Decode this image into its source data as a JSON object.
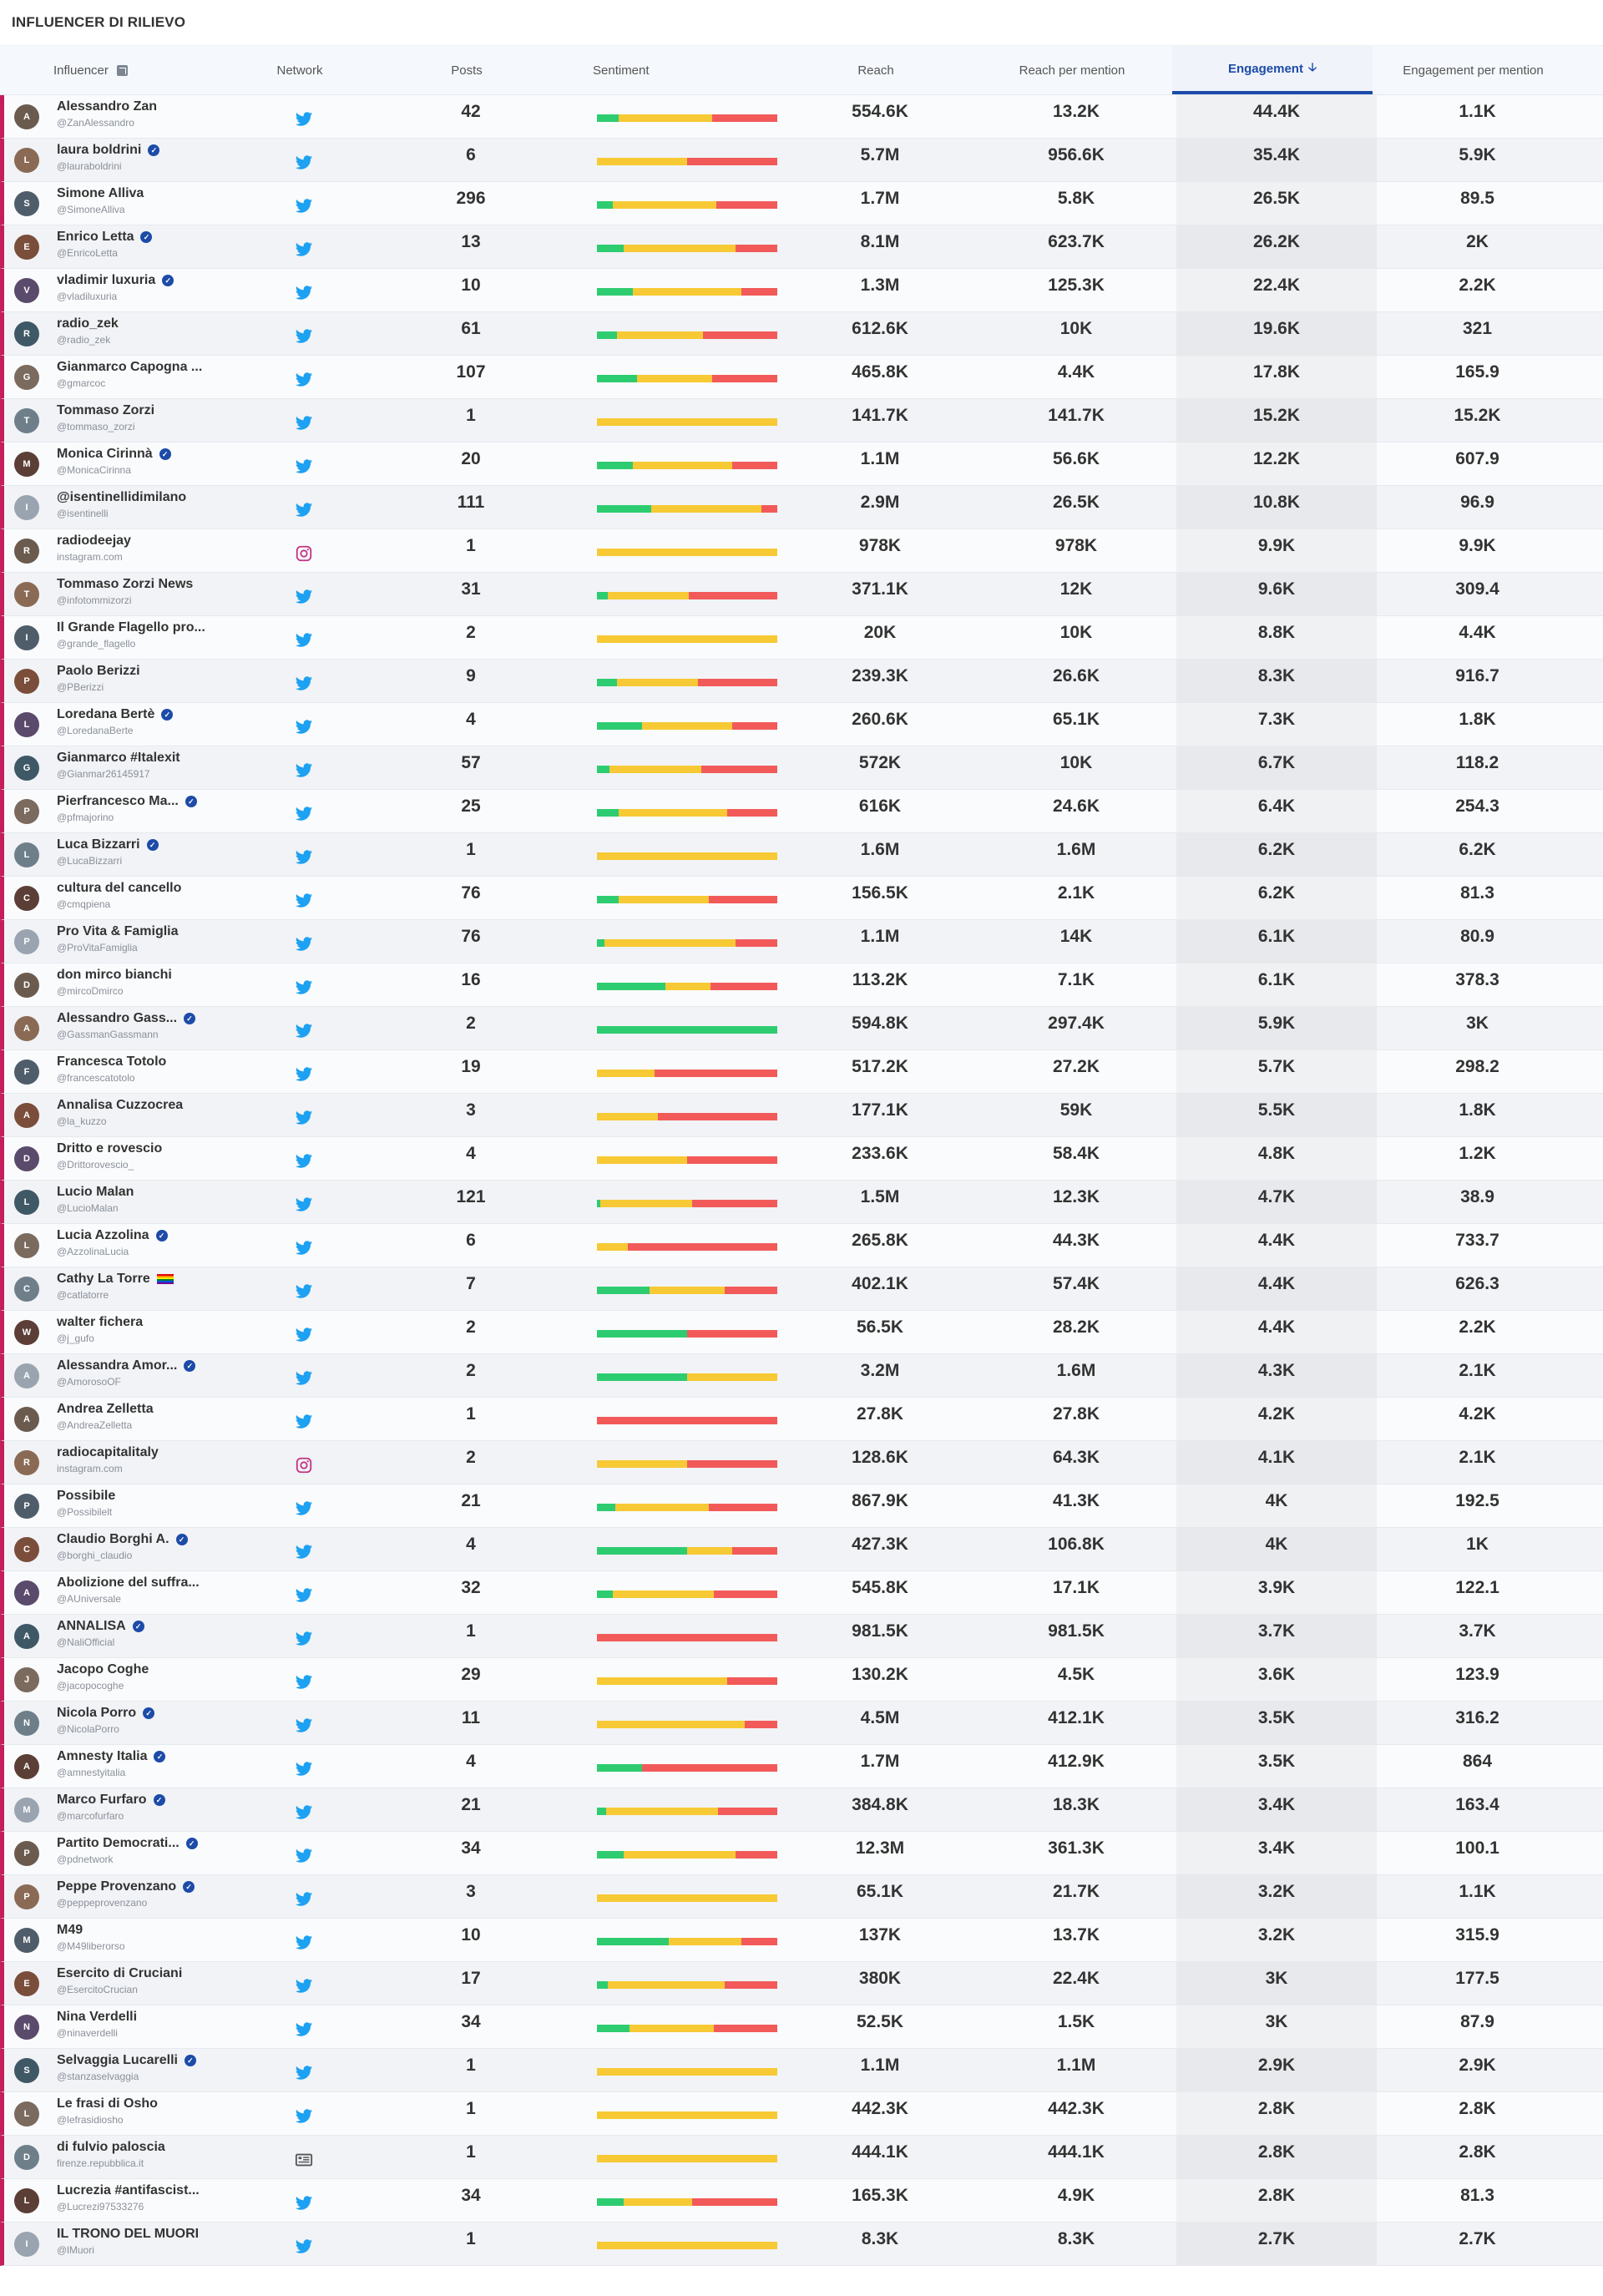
{
  "page": {
    "title": "INFLUENCER DI RILIEVO"
  },
  "columns": {
    "influencer": "Influencer",
    "network": "Network",
    "posts": "Posts",
    "sentiment": "Sentiment",
    "reach": "Reach",
    "reach_per_mention": "Reach per mention",
    "engagement": "Engagement",
    "engagement_per_mention": "Engagement per mention"
  },
  "sorted_column": "engagement",
  "colors": {
    "accent": "#1d4ba8",
    "positive": "#2ecc71",
    "neutral": "#f7c934",
    "negative": "#f25a5a",
    "row_marker": "#c41e5c",
    "twitter": "#1da1f2",
    "instagram": "#c13584"
  },
  "rows": [
    {
      "name": "Alessandro Zan",
      "handle": "@ZanAlessandro",
      "verified": false,
      "network": "twitter",
      "posts": "42",
      "sentiment": [
        12,
        52,
        36
      ],
      "reach": "554.6K",
      "rpm": "13.2K",
      "engagement": "44.4K",
      "epm": "1.1K"
    },
    {
      "name": "laura boldrini",
      "handle": "@lauraboldrini",
      "verified": true,
      "network": "twitter",
      "posts": "6",
      "sentiment": [
        0,
        50,
        50
      ],
      "reach": "5.7M",
      "rpm": "956.6K",
      "engagement": "35.4K",
      "epm": "5.9K"
    },
    {
      "name": "Simone Alliva",
      "handle": "@SimoneAlliva",
      "verified": false,
      "network": "twitter",
      "posts": "296",
      "sentiment": [
        9,
        57,
        34
      ],
      "reach": "1.7M",
      "rpm": "5.8K",
      "engagement": "26.5K",
      "epm": "89.5"
    },
    {
      "name": "Enrico Letta",
      "handle": "@EnricoLetta",
      "verified": true,
      "network": "twitter",
      "posts": "13",
      "sentiment": [
        15,
        62,
        23
      ],
      "reach": "8.1M",
      "rpm": "623.7K",
      "engagement": "26.2K",
      "epm": "2K"
    },
    {
      "name": "vladimir luxuria",
      "handle": "@vladiluxuria",
      "verified": true,
      "network": "twitter",
      "posts": "10",
      "sentiment": [
        20,
        60,
        20
      ],
      "reach": "1.3M",
      "rpm": "125.3K",
      "engagement": "22.4K",
      "epm": "2.2K"
    },
    {
      "name": "radio_zek",
      "handle": "@radio_zek",
      "verified": false,
      "network": "twitter",
      "posts": "61",
      "sentiment": [
        11,
        48,
        41
      ],
      "reach": "612.6K",
      "rpm": "10K",
      "engagement": "19.6K",
      "epm": "321"
    },
    {
      "name": "Gianmarco Capogna ...",
      "handle": "@gmarcoc",
      "verified": false,
      "network": "twitter",
      "posts": "107",
      "sentiment": [
        22,
        42,
        36
      ],
      "reach": "465.8K",
      "rpm": "4.4K",
      "engagement": "17.8K",
      "epm": "165.9"
    },
    {
      "name": "Tommaso Zorzi",
      "handle": "@tommaso_zorzi",
      "verified": false,
      "network": "twitter",
      "posts": "1",
      "sentiment": [
        0,
        100,
        0
      ],
      "reach": "141.7K",
      "rpm": "141.7K",
      "engagement": "15.2K",
      "epm": "15.2K"
    },
    {
      "name": "Monica Cirinnà",
      "handle": "@MonicaCirinna",
      "verified": true,
      "network": "twitter",
      "posts": "20",
      "sentiment": [
        20,
        55,
        25
      ],
      "reach": "1.1M",
      "rpm": "56.6K",
      "engagement": "12.2K",
      "epm": "607.9"
    },
    {
      "name": "@isentinellidimilano",
      "handle": "@isentinelli",
      "verified": false,
      "network": "twitter",
      "posts": "111",
      "sentiment": [
        30,
        61,
        9
      ],
      "reach": "2.9M",
      "rpm": "26.5K",
      "engagement": "10.8K",
      "epm": "96.9"
    },
    {
      "name": "radiodeejay",
      "handle": "instagram.com",
      "verified": false,
      "network": "instagram",
      "posts": "1",
      "sentiment": [
        0,
        100,
        0
      ],
      "reach": "978K",
      "rpm": "978K",
      "engagement": "9.9K",
      "epm": "9.9K"
    },
    {
      "name": "Tommaso Zorzi News",
      "handle": "@infotommizorzi",
      "verified": false,
      "network": "twitter",
      "posts": "31",
      "sentiment": [
        6,
        45,
        49
      ],
      "reach": "371.1K",
      "rpm": "12K",
      "engagement": "9.6K",
      "epm": "309.4"
    },
    {
      "name": "Il Grande Flagello pro...",
      "handle": "@grande_flagello",
      "verified": false,
      "network": "twitter",
      "posts": "2",
      "sentiment": [
        0,
        100,
        0
      ],
      "reach": "20K",
      "rpm": "10K",
      "engagement": "8.8K",
      "epm": "4.4K"
    },
    {
      "name": "Paolo Berizzi",
      "handle": "@PBerizzi",
      "verified": false,
      "network": "twitter",
      "posts": "9",
      "sentiment": [
        11,
        45,
        44
      ],
      "reach": "239.3K",
      "rpm": "26.6K",
      "engagement": "8.3K",
      "epm": "916.7"
    },
    {
      "name": "Loredana Bertè",
      "handle": "@LoredanaBerte",
      "verified": true,
      "network": "twitter",
      "posts": "4",
      "sentiment": [
        25,
        50,
        25
      ],
      "reach": "260.6K",
      "rpm": "65.1K",
      "engagement": "7.3K",
      "epm": "1.8K"
    },
    {
      "name": "Gianmarco #Italexit",
      "handle": "@Gianmar26145917",
      "verified": false,
      "network": "twitter",
      "posts": "57",
      "sentiment": [
        7,
        51,
        42
      ],
      "reach": "572K",
      "rpm": "10K",
      "engagement": "6.7K",
      "epm": "118.2"
    },
    {
      "name": "Pierfrancesco Ma...",
      "handle": "@pfmajorino",
      "verified": true,
      "network": "twitter",
      "posts": "25",
      "sentiment": [
        12,
        60,
        28
      ],
      "reach": "616K",
      "rpm": "24.6K",
      "engagement": "6.4K",
      "epm": "254.3"
    },
    {
      "name": "Luca Bizzarri",
      "handle": "@LucaBizzarri",
      "verified": true,
      "network": "twitter",
      "posts": "1",
      "sentiment": [
        0,
        100,
        0
      ],
      "reach": "1.6M",
      "rpm": "1.6M",
      "engagement": "6.2K",
      "epm": "6.2K"
    },
    {
      "name": "cultura del cancello",
      "handle": "@cmqpiena",
      "verified": false,
      "network": "twitter",
      "posts": "76",
      "sentiment": [
        12,
        50,
        38
      ],
      "reach": "156.5K",
      "rpm": "2.1K",
      "engagement": "6.2K",
      "epm": "81.3"
    },
    {
      "name": "Pro Vita & Famiglia",
      "handle": "@ProVitaFamiglia",
      "verified": false,
      "network": "twitter",
      "posts": "76",
      "sentiment": [
        4,
        73,
        23
      ],
      "reach": "1.1M",
      "rpm": "14K",
      "engagement": "6.1K",
      "epm": "80.9"
    },
    {
      "name": "don mirco bianchi",
      "handle": "@mircoDmirco",
      "verified": false,
      "network": "twitter",
      "posts": "16",
      "sentiment": [
        38,
        25,
        37
      ],
      "reach": "113.2K",
      "rpm": "7.1K",
      "engagement": "6.1K",
      "epm": "378.3"
    },
    {
      "name": "Alessandro Gass...",
      "handle": "@GassmanGassmann",
      "verified": true,
      "network": "twitter",
      "posts": "2",
      "sentiment": [
        100,
        0,
        0
      ],
      "reach": "594.8K",
      "rpm": "297.4K",
      "engagement": "5.9K",
      "epm": "3K"
    },
    {
      "name": "Francesca Totolo",
      "handle": "@francescatotolo",
      "verified": false,
      "network": "twitter",
      "posts": "19",
      "sentiment": [
        0,
        32,
        68
      ],
      "reach": "517.2K",
      "rpm": "27.2K",
      "engagement": "5.7K",
      "epm": "298.2"
    },
    {
      "name": "Annalisa Cuzzocrea",
      "handle": "@la_kuzzo",
      "verified": false,
      "network": "twitter",
      "posts": "3",
      "sentiment": [
        0,
        34,
        66
      ],
      "reach": "177.1K",
      "rpm": "59K",
      "engagement": "5.5K",
      "epm": "1.8K"
    },
    {
      "name": "Dritto e rovescio",
      "handle": "@Drittorovescio_",
      "verified": false,
      "network": "twitter",
      "posts": "4",
      "sentiment": [
        0,
        50,
        50
      ],
      "reach": "233.6K",
      "rpm": "58.4K",
      "engagement": "4.8K",
      "epm": "1.2K"
    },
    {
      "name": "Lucio Malan",
      "handle": "@LucioMalan",
      "verified": false,
      "network": "twitter",
      "posts": "121",
      "sentiment": [
        2,
        51,
        47
      ],
      "reach": "1.5M",
      "rpm": "12.3K",
      "engagement": "4.7K",
      "epm": "38.9"
    },
    {
      "name": "Lucia Azzolina",
      "handle": "@AzzolinaLucia",
      "verified": true,
      "network": "twitter",
      "posts": "6",
      "sentiment": [
        0,
        17,
        83
      ],
      "reach": "265.8K",
      "rpm": "44.3K",
      "engagement": "4.4K",
      "epm": "733.7"
    },
    {
      "name": "Cathy La Torre",
      "handle": "@catlatorre",
      "verified": false,
      "flag": true,
      "network": "twitter",
      "posts": "7",
      "sentiment": [
        29,
        42,
        29
      ],
      "reach": "402.1K",
      "rpm": "57.4K",
      "engagement": "4.4K",
      "epm": "626.3"
    },
    {
      "name": "walter fichera",
      "handle": "@j_gufo",
      "verified": false,
      "network": "twitter",
      "posts": "2",
      "sentiment": [
        50,
        0,
        50
      ],
      "reach": "56.5K",
      "rpm": "28.2K",
      "engagement": "4.4K",
      "epm": "2.2K"
    },
    {
      "name": "Alessandra Amor...",
      "handle": "@AmorosoOF",
      "verified": true,
      "network": "twitter",
      "posts": "2",
      "sentiment": [
        50,
        50,
        0
      ],
      "reach": "3.2M",
      "rpm": "1.6M",
      "engagement": "4.3K",
      "epm": "2.1K"
    },
    {
      "name": "Andrea Zelletta",
      "handle": "@AndreaZelletta",
      "verified": false,
      "network": "twitter",
      "posts": "1",
      "sentiment": [
        0,
        0,
        100
      ],
      "reach": "27.8K",
      "rpm": "27.8K",
      "engagement": "4.2K",
      "epm": "4.2K"
    },
    {
      "name": "radiocapitalitaly",
      "handle": "instagram.com",
      "verified": false,
      "network": "instagram",
      "posts": "2",
      "sentiment": [
        0,
        50,
        50
      ],
      "reach": "128.6K",
      "rpm": "64.3K",
      "engagement": "4.1K",
      "epm": "2.1K"
    },
    {
      "name": "Possibile",
      "handle": "@Possibilelt",
      "verified": false,
      "network": "twitter",
      "posts": "21",
      "sentiment": [
        10,
        52,
        38
      ],
      "reach": "867.9K",
      "rpm": "41.3K",
      "engagement": "4K",
      "epm": "192.5"
    },
    {
      "name": "Claudio Borghi A.",
      "handle": "@borghi_claudio",
      "verified": true,
      "network": "twitter",
      "posts": "4",
      "sentiment": [
        50,
        25,
        25
      ],
      "reach": "427.3K",
      "rpm": "106.8K",
      "engagement": "4K",
      "epm": "1K"
    },
    {
      "name": "Abolizione del suffra...",
      "handle": "@AUniversale",
      "verified": false,
      "network": "twitter",
      "posts": "32",
      "sentiment": [
        9,
        56,
        35
      ],
      "reach": "545.8K",
      "rpm": "17.1K",
      "engagement": "3.9K",
      "epm": "122.1"
    },
    {
      "name": "ANNALISA",
      "handle": "@NaliOfficial",
      "verified": true,
      "network": "twitter",
      "posts": "1",
      "sentiment": [
        0,
        0,
        100
      ],
      "reach": "981.5K",
      "rpm": "981.5K",
      "engagement": "3.7K",
      "epm": "3.7K"
    },
    {
      "name": "Jacopo Coghe",
      "handle": "@jacopocoghe",
      "verified": false,
      "network": "twitter",
      "posts": "29",
      "sentiment": [
        0,
        72,
        28
      ],
      "reach": "130.2K",
      "rpm": "4.5K",
      "engagement": "3.6K",
      "epm": "123.9"
    },
    {
      "name": "Nicola Porro",
      "handle": "@NicolaPorro",
      "verified": true,
      "network": "twitter",
      "posts": "11",
      "sentiment": [
        0,
        82,
        18
      ],
      "reach": "4.5M",
      "rpm": "412.1K",
      "engagement": "3.5K",
      "epm": "316.2"
    },
    {
      "name": "Amnesty Italia",
      "handle": "@amnestyitalia",
      "verified": true,
      "network": "twitter",
      "posts": "4",
      "sentiment": [
        25,
        0,
        75
      ],
      "reach": "1.7M",
      "rpm": "412.9K",
      "engagement": "3.5K",
      "epm": "864"
    },
    {
      "name": "Marco Furfaro",
      "handle": "@marcofurfaro",
      "verified": true,
      "network": "twitter",
      "posts": "21",
      "sentiment": [
        5,
        62,
        33
      ],
      "reach": "384.8K",
      "rpm": "18.3K",
      "engagement": "3.4K",
      "epm": "163.4"
    },
    {
      "name": "Partito Democrati...",
      "handle": "@pdnetwork",
      "verified": true,
      "network": "twitter",
      "posts": "34",
      "sentiment": [
        15,
        62,
        23
      ],
      "reach": "12.3M",
      "rpm": "361.3K",
      "engagement": "3.4K",
      "epm": "100.1"
    },
    {
      "name": "Peppe Provenzano",
      "handle": "@peppeprovenzano",
      "verified": true,
      "network": "twitter",
      "posts": "3",
      "sentiment": [
        0,
        100,
        0
      ],
      "reach": "65.1K",
      "rpm": "21.7K",
      "engagement": "3.2K",
      "epm": "1.1K"
    },
    {
      "name": "M49",
      "handle": "@M49liberorso",
      "verified": false,
      "network": "twitter",
      "posts": "10",
      "sentiment": [
        40,
        40,
        20
      ],
      "reach": "137K",
      "rpm": "13.7K",
      "engagement": "3.2K",
      "epm": "315.9"
    },
    {
      "name": "Esercito di Cruciani",
      "handle": "@EsercitoCrucian",
      "verified": false,
      "network": "twitter",
      "posts": "17",
      "sentiment": [
        6,
        65,
        29
      ],
      "reach": "380K",
      "rpm": "22.4K",
      "engagement": "3K",
      "epm": "177.5"
    },
    {
      "name": "Nina Verdelli",
      "handle": "@ninaverdelli",
      "verified": false,
      "network": "twitter",
      "posts": "34",
      "sentiment": [
        18,
        47,
        35
      ],
      "reach": "52.5K",
      "rpm": "1.5K",
      "engagement": "3K",
      "epm": "87.9"
    },
    {
      "name": "Selvaggia Lucarelli",
      "handle": "@stanzaselvaggia",
      "verified": true,
      "network": "twitter",
      "posts": "1",
      "sentiment": [
        0,
        100,
        0
      ],
      "reach": "1.1M",
      "rpm": "1.1M",
      "engagement": "2.9K",
      "epm": "2.9K"
    },
    {
      "name": "Le frasi di Osho",
      "handle": "@lefrasidiosho",
      "verified": false,
      "network": "twitter",
      "posts": "1",
      "sentiment": [
        0,
        100,
        0
      ],
      "reach": "442.3K",
      "rpm": "442.3K",
      "engagement": "2.8K",
      "epm": "2.8K"
    },
    {
      "name": "di fulvio paloscia",
      "handle": "firenze.repubblica.it",
      "verified": false,
      "network": "news",
      "posts": "1",
      "sentiment": [
        0,
        100,
        0
      ],
      "reach": "444.1K",
      "rpm": "444.1K",
      "engagement": "2.8K",
      "epm": "2.8K"
    },
    {
      "name": "Lucrezia #antifascist...",
      "handle": "@Lucrezi97533276",
      "verified": false,
      "network": "twitter",
      "posts": "34",
      "sentiment": [
        15,
        38,
        47
      ],
      "reach": "165.3K",
      "rpm": "4.9K",
      "engagement": "2.8K",
      "epm": "81.3"
    },
    {
      "name": "IL TRONO DEL MUORI",
      "handle": "@lMuori",
      "verified": false,
      "network": "twitter",
      "posts": "1",
      "sentiment": [
        0,
        100,
        0
      ],
      "reach": "8.3K",
      "rpm": "8.3K",
      "engagement": "2.7K",
      "epm": "2.7K"
    }
  ]
}
